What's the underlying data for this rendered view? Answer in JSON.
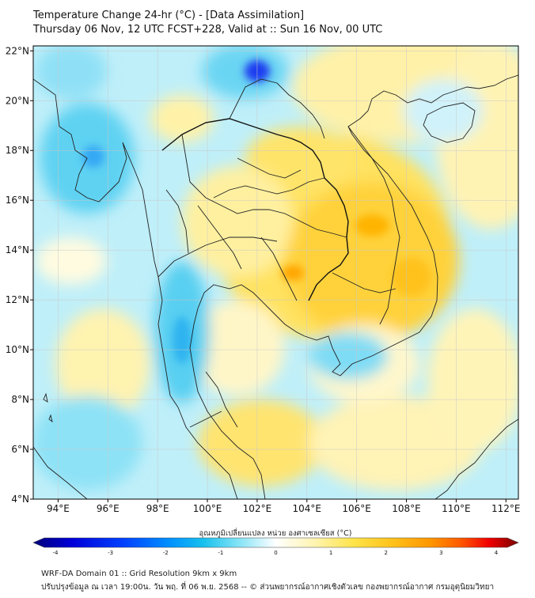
{
  "header": {
    "title_line1": "Temperature Change 24-hr (°C) - [Data Assimilation]",
    "title_line2": "Thursday 06 Nov, 12 UTC FCST+228, Valid at :: Sun 16 Nov, 00 UTC"
  },
  "map": {
    "lon_labels": [
      "94°E",
      "96°E",
      "98°E",
      "100°E",
      "102°E",
      "104°E",
      "106°E",
      "108°E",
      "110°E",
      "112°E"
    ],
    "lat_labels": [
      "22°N",
      "20°N",
      "18°N",
      "16°N",
      "14°N",
      "12°N",
      "10°N",
      "8°N",
      "6°N",
      "4°N"
    ],
    "lon_values": [
      94,
      96,
      98,
      100,
      102,
      104,
      106,
      108,
      110,
      112
    ],
    "lat_values": [
      22,
      20,
      18,
      16,
      14,
      12,
      10,
      8,
      6,
      4
    ],
    "lon_range": [
      93,
      112.5
    ],
    "lat_range": [
      4,
      22.2
    ]
  },
  "colorbar": {
    "title": "อุณหภูมิเปลี่ยนแปลง หน่วย องศาเซลเซียส (°C)",
    "tick_labels": [
      "-4",
      "-3",
      "-2",
      "-1",
      "0",
      "1",
      "2",
      "3",
      "4"
    ],
    "tick_values": [
      -4,
      -3,
      -2,
      -1,
      0,
      1,
      2,
      3,
      4
    ],
    "range": [
      -4,
      4
    ],
    "colors": [
      "#00007a",
      "#0000d8",
      "#0044ff",
      "#0090ff",
      "#17c0ee",
      "#55d8f4",
      "#a6ecf8",
      "#ffffff",
      "#fff4b0",
      "#ffe44a",
      "#ffc21a",
      "#ff9500",
      "#ff5a00",
      "#f00000",
      "#780000"
    ]
  },
  "footer": {
    "line1": "WRF-DA Domain 01 :: Grid Resolution 9km x 9km",
    "line2": "ปรับปรุงข้อมูล ณ เวลา 19:00น. วัน พฤ. ที่ 06 พ.ย. 2568 -- © ส่วนพยากรณ์อากาศเชิงตัวเลข กองพยากรณ์อากาศ กรมอุตุนิยมวิทยา"
  }
}
